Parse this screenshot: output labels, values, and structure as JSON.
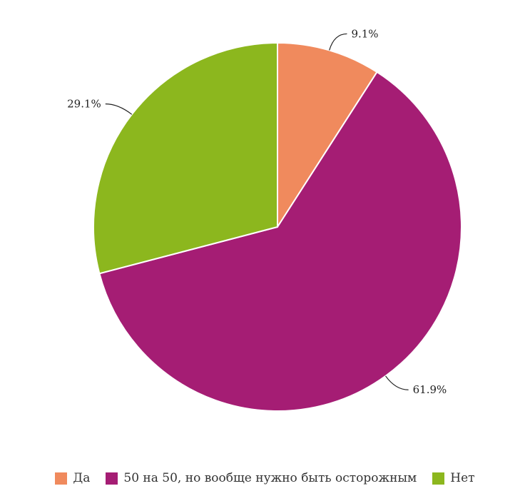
{
  "chart_data": {
    "type": "pie",
    "slices": [
      {
        "label": "Да",
        "value": 9.1,
        "display": "9.1%",
        "color": "#f08a5d"
      },
      {
        "label": "50 на 50, но вообще нужно быть осторожным",
        "value": 61.9,
        "display": "61.9%",
        "color": "#a51d74"
      },
      {
        "label": "Нет",
        "value": 29.1,
        "display": "29.1%",
        "color": "#8cb71e"
      }
    ],
    "start_angle": "12 o'clock",
    "direction": "clockwise",
    "legend_position": "bottom"
  }
}
